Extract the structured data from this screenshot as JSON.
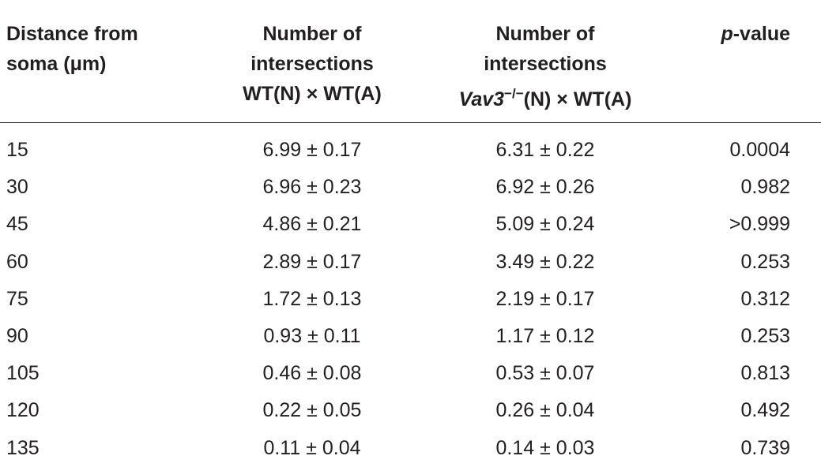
{
  "headers": {
    "distance": [
      "Distance from",
      "soma (μm)"
    ],
    "wt": [
      "Number of",
      "intersections",
      "WT(N) × WT(A)"
    ],
    "vav": {
      "line1": "Number of",
      "line2": "intersections",
      "gene": "Vav3",
      "superscript": "−/−",
      "rest": "(N) × WT(A)"
    },
    "pvalue": {
      "italic": "p",
      "rest": "-value"
    }
  },
  "rows": [
    {
      "distance": "15",
      "wt": "6.99 ± 0.17",
      "vav": "6.31 ± 0.22",
      "p": "0.0004"
    },
    {
      "distance": "30",
      "wt": "6.96 ± 0.23",
      "vav": "6.92 ± 0.26",
      "p": "0.982"
    },
    {
      "distance": "45",
      "wt": "4.86 ± 0.21",
      "vav": "5.09 ± 0.24",
      "p": ">0.999"
    },
    {
      "distance": "60",
      "wt": "2.89 ± 0.17",
      "vav": "3.49 ± 0.22",
      "p": "0.253"
    },
    {
      "distance": "75",
      "wt": "1.72 ± 0.13",
      "vav": "2.19 ± 0.17",
      "p": "0.312"
    },
    {
      "distance": "90",
      "wt": "0.93 ± 0.11",
      "vav": "1.17 ± 0.12",
      "p": "0.253"
    },
    {
      "distance": "105",
      "wt": "0.46 ± 0.08",
      "vav": "0.53 ± 0.07",
      "p": "0.813"
    },
    {
      "distance": "120",
      "wt": "0.22 ± 0.05",
      "vav": "0.26 ± 0.04",
      "p": "0.492"
    },
    {
      "distance": "135",
      "wt": "0.11 ± 0.04",
      "vav": "0.14 ± 0.03",
      "p": "0.739"
    }
  ]
}
